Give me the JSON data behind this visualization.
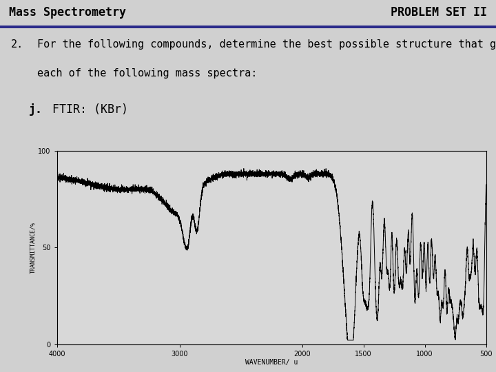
{
  "title_left": "Mass Spectrometry",
  "title_right": "PROBLEM SET II",
  "header_bg": "#d0d0d0",
  "header_line_color": "#2a2a8a",
  "problem_line1": "For the following compounds, determine the best possible structure that gives",
  "problem_line2": "each of the following mass spectra:",
  "problem_num": "2.",
  "sub_label": "j.",
  "sub_text": "FTIR: (KBr)",
  "bg_color": "#d0d0d0",
  "plot_bg": "#d8d8d8",
  "xlabel": "WAVENUMBER/ u",
  "ylabel": "TRANSMITTANCE/%",
  "xmin": 500,
  "xmax": 4000,
  "ymin": 0,
  "ymax": 100,
  "xticks": [
    4000,
    3000,
    2000,
    1500,
    1000,
    500
  ],
  "yticks": [
    0,
    50,
    100
  ]
}
